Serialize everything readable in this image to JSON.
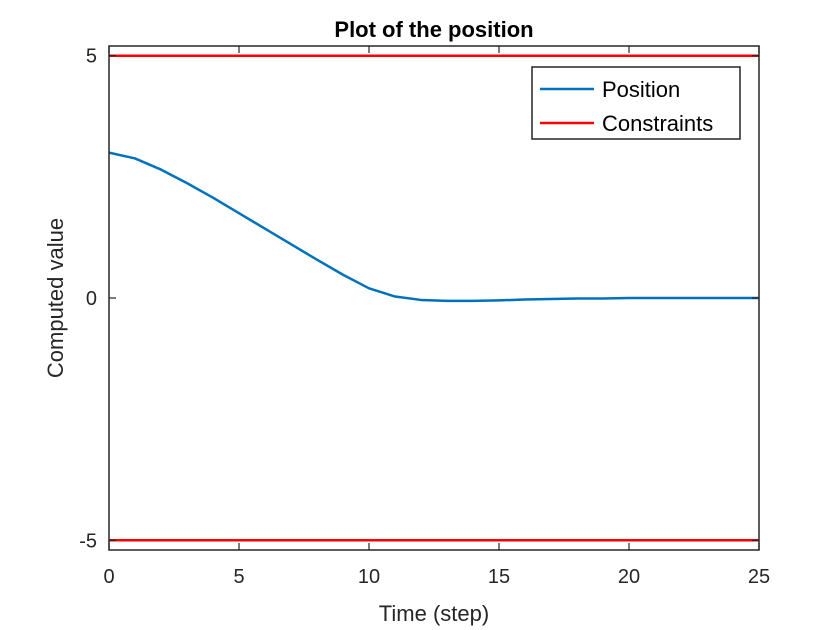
{
  "chart_data": {
    "type": "line",
    "title": "Plot of the position",
    "xlabel": "Time (step)",
    "ylabel": "Computed value",
    "xlim": [
      0,
      25
    ],
    "ylim": [
      -5.2,
      5.2
    ],
    "xticks": [
      0,
      5,
      10,
      15,
      20,
      25
    ],
    "xtick_labels": [
      "0",
      "5",
      "10",
      "15",
      "20",
      "25"
    ],
    "yticks": [
      -5,
      0,
      5
    ],
    "ytick_labels": [
      "-5",
      "0",
      "5"
    ],
    "grid": false,
    "legend_position": "top-right",
    "series": [
      {
        "name": "Position",
        "color": "#0072BD",
        "x": [
          0,
          1,
          2,
          3,
          4,
          5,
          6,
          7,
          8,
          9,
          10,
          11,
          12,
          13,
          14,
          15,
          16,
          17,
          18,
          19,
          20,
          21,
          22,
          23,
          24,
          25
        ],
        "y": [
          3.0,
          2.88,
          2.65,
          2.37,
          2.07,
          1.75,
          1.43,
          1.11,
          0.79,
          0.48,
          0.2,
          0.03,
          -0.04,
          -0.06,
          -0.06,
          -0.05,
          -0.03,
          -0.02,
          -0.01,
          -0.01,
          0.0,
          0.0,
          0.0,
          0.0,
          0.0,
          0.0
        ]
      },
      {
        "name": "Constraints",
        "color": "#FF0000",
        "x": [
          0,
          25
        ],
        "y": [
          5,
          5
        ]
      },
      {
        "name": "",
        "color": "#FF0000",
        "x": [
          0,
          25
        ],
        "y": [
          -5,
          -5
        ]
      }
    ],
    "legend": [
      {
        "label": "Position",
        "color": "#0072BD"
      },
      {
        "label": "Constraints",
        "color": "#FF0000"
      }
    ]
  }
}
